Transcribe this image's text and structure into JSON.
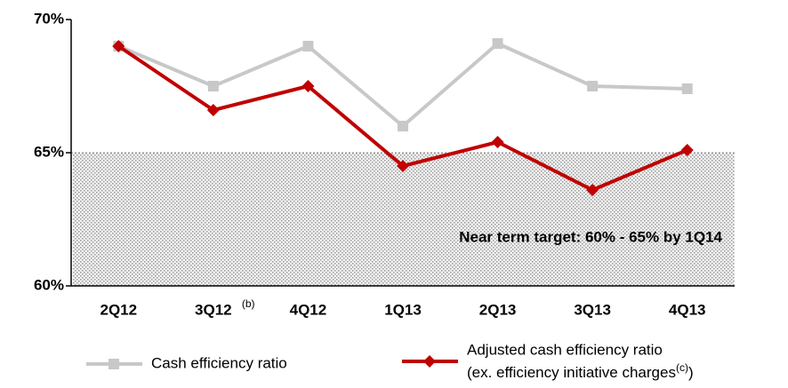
{
  "chart_data": {
    "type": "line",
    "categories": [
      "2Q12",
      "3Q12",
      "4Q12",
      "1Q13",
      "2Q13",
      "3Q13",
      "4Q13"
    ],
    "category_notes": [
      null,
      "(b)",
      null,
      null,
      null,
      null,
      null
    ],
    "series": [
      {
        "name": "Cash efficiency ratio",
        "color": "#c8c8c8",
        "marker": "square",
        "values": [
          69.0,
          67.5,
          69.0,
          66.0,
          69.1,
          67.5,
          67.4
        ]
      },
      {
        "name": "Adjusted cash efficiency ratio",
        "name_detail": "(ex. efficiency initiative charges",
        "name_note": "(c)",
        "name_end": ")",
        "color": "#c00000",
        "marker": "diamond",
        "values": [
          69.0,
          66.6,
          67.5,
          64.5,
          65.4,
          63.6,
          65.1
        ]
      }
    ],
    "ylim": [
      60,
      70
    ],
    "yticks": [
      {
        "value": 60,
        "label": "60%"
      },
      {
        "value": 65,
        "label": "65%"
      },
      {
        "value": 70,
        "label": "70%"
      }
    ],
    "target_band": [
      60,
      65
    ],
    "target_label": "Near term target: 60% - 65% by 1Q14",
    "legend": "bottom"
  }
}
